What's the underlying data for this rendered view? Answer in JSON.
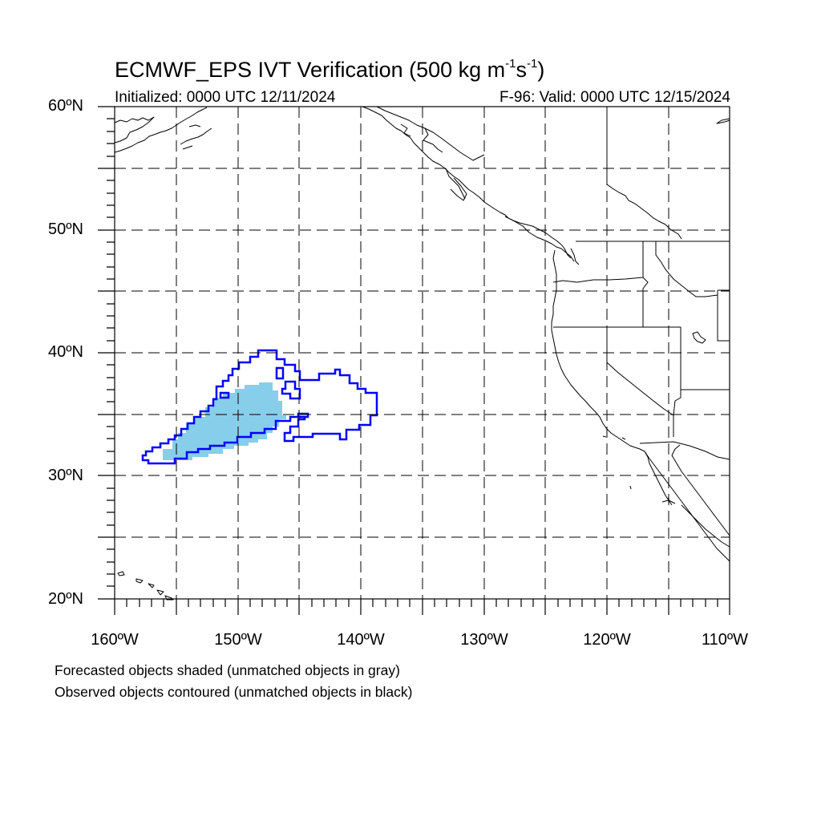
{
  "title": {
    "text": "ECMWF_EPS IVT Verification (500 kg m",
    "unit_exp1": "-1",
    "mid": "s",
    "unit_exp2": "-1",
    "close": ")"
  },
  "initialized": "Initialized: 0000 UTC 12/11/2024",
  "valid": "F-96: Valid: 0000 UTC 12/15/2024",
  "lat_labels": [
    "60ºN",
    "50ºN",
    "40ºN",
    "30ºN",
    "20ºN"
  ],
  "lon_labels": [
    "160ºW",
    "150ºW",
    "140ºW",
    "130ºW",
    "120ºW",
    "110ºW"
  ],
  "notes": {
    "forecast": "Forecasted objects shaded (unmatched objects in gray)",
    "observed": "Observed objects contoured (unmatched objects in black)"
  },
  "colors": {
    "forecast_fill": "#87ceeb",
    "observed_contour": "#0000ff",
    "coastline": "#000000",
    "gridline": "#000000"
  },
  "map": {
    "projection": "cylindrical equidistant",
    "lat_range": [
      20,
      60
    ],
    "lon_range": [
      -160,
      -110
    ],
    "grid": "dashed, every 5 degrees"
  }
}
